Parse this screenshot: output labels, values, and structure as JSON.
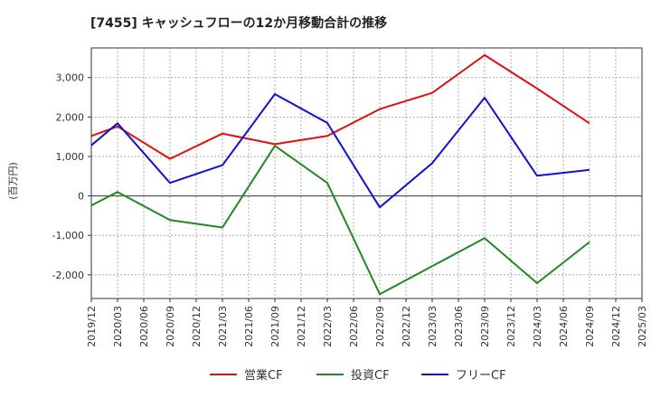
{
  "chart_data": {
    "type": "line",
    "title": "[7455]  キャッシュフローの12か月移動合計の推移",
    "ylabel": "(百万円)",
    "xlabel": "",
    "ylim": [
      -2600,
      3750
    ],
    "yticks": [
      3000,
      2000,
      1000,
      0,
      -1000,
      -2000
    ],
    "ytick_labels": [
      "3,000",
      "2,000",
      "1,000",
      "0",
      "-1,000",
      "-2,000"
    ],
    "xticks": [
      "2019/12",
      "2020/03",
      "2020/06",
      "2020/09",
      "2020/12",
      "2021/03",
      "2021/06",
      "2021/09",
      "2021/12",
      "2022/03",
      "2022/06",
      "2022/09",
      "2022/12",
      "2023/03",
      "2023/06",
      "2023/09",
      "2023/12",
      "2024/03",
      "2024/06",
      "2024/09",
      "2024/12",
      "2025/03"
    ],
    "grid": true,
    "legend_position": "bottom",
    "series": [
      {
        "name": "営業CF",
        "color": "#dd1111",
        "points": [
          [
            "2019/12",
            1520
          ],
          [
            "2020/03",
            1760
          ],
          [
            "2020/09",
            940
          ],
          [
            "2021/03",
            1580
          ],
          [
            "2021/09",
            1310
          ],
          [
            "2022/03",
            1520
          ],
          [
            "2022/09",
            2200
          ],
          [
            "2023/03",
            2610
          ],
          [
            "2023/09",
            3570
          ],
          [
            "2024/03",
            2720
          ],
          [
            "2024/09",
            1840
          ]
        ]
      },
      {
        "name": "投資CF",
        "color": "#228822",
        "points": [
          [
            "2019/12",
            -240
          ],
          [
            "2020/03",
            100
          ],
          [
            "2020/09",
            -610
          ],
          [
            "2021/03",
            -800
          ],
          [
            "2021/09",
            1270
          ],
          [
            "2022/03",
            330
          ],
          [
            "2022/09",
            -2490
          ],
          [
            "2023/03",
            -1780
          ],
          [
            "2023/09",
            -1070
          ],
          [
            "2024/03",
            -2210
          ],
          [
            "2024/09",
            -1170
          ]
        ]
      },
      {
        "name": "フリーCF",
        "color": "#1111cc",
        "points": [
          [
            "2019/12",
            1280
          ],
          [
            "2020/03",
            1840
          ],
          [
            "2020/09",
            330
          ],
          [
            "2021/03",
            780
          ],
          [
            "2021/09",
            2580
          ],
          [
            "2022/03",
            1850
          ],
          [
            "2022/09",
            -290
          ],
          [
            "2023/03",
            830
          ],
          [
            "2023/09",
            2490
          ],
          [
            "2024/03",
            510
          ],
          [
            "2024/09",
            660
          ]
        ]
      }
    ]
  }
}
